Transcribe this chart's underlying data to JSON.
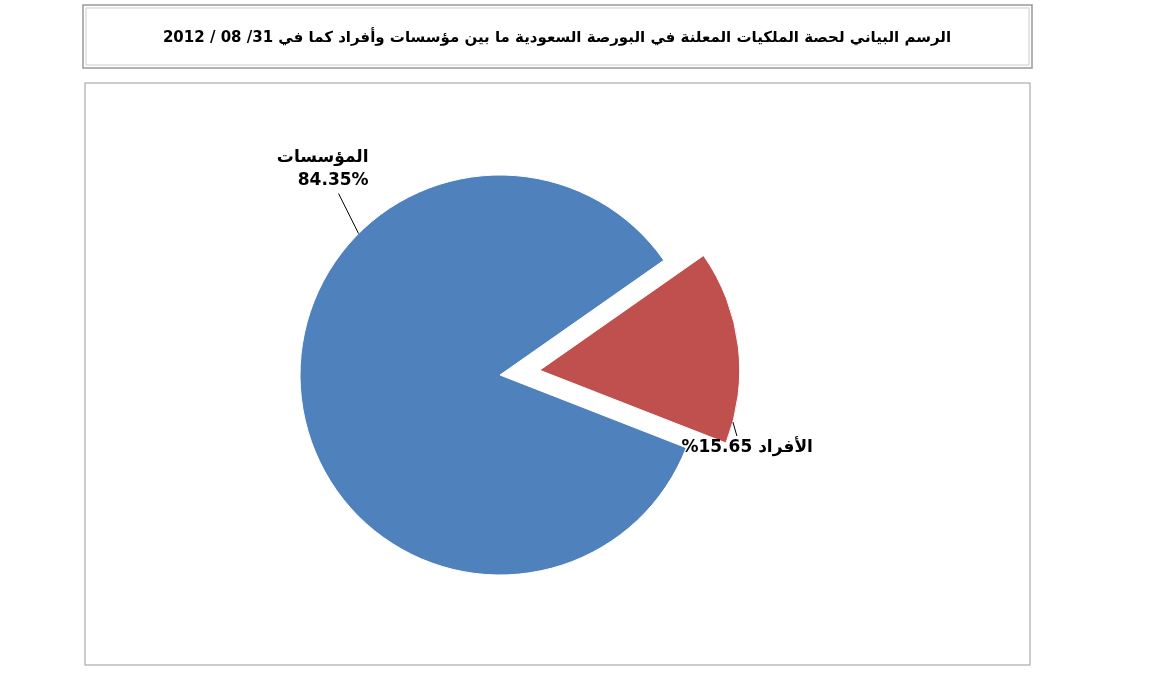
{
  "chart_data": {
    "type": "pie",
    "title": "الرسم البياني لحصة الملكيات المعلنة في البورصة السعودية ما بين مؤسسات وأفراد كما في 31/ 08 / 2012",
    "categories": [
      "الأفراد",
      "المؤسسات"
    ],
    "values": [
      15.65,
      84.35
    ],
    "value_labels": [
      "15.65%",
      "84.35%"
    ],
    "colors": [
      "#c0504d",
      "#4f81bd"
    ],
    "legend": false
  }
}
